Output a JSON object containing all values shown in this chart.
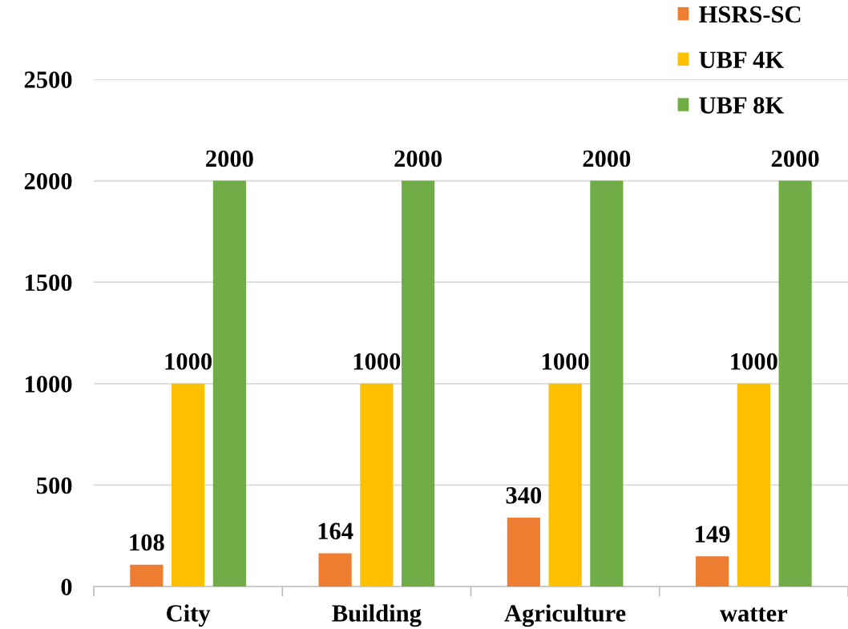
{
  "chart_data": {
    "type": "bar",
    "categories": [
      "City",
      "Building",
      "Agriculture",
      "watter"
    ],
    "series": [
      {
        "name": "HSRS-SC",
        "color": "#ed7d31",
        "values": [
          108,
          164,
          340,
          149
        ]
      },
      {
        "name": "UBF 4K",
        "color": "#ffc000",
        "values": [
          1000,
          1000,
          1000,
          1000
        ]
      },
      {
        "name": "UBF 8K",
        "color": "#70ad47",
        "values": [
          2000,
          2000,
          2000,
          2000
        ]
      }
    ],
    "ylim": [
      0,
      2500
    ],
    "yticks": [
      0,
      500,
      1000,
      1500,
      2000,
      2500
    ],
    "grid": "y",
    "legend": "top right",
    "data_labels": true
  }
}
